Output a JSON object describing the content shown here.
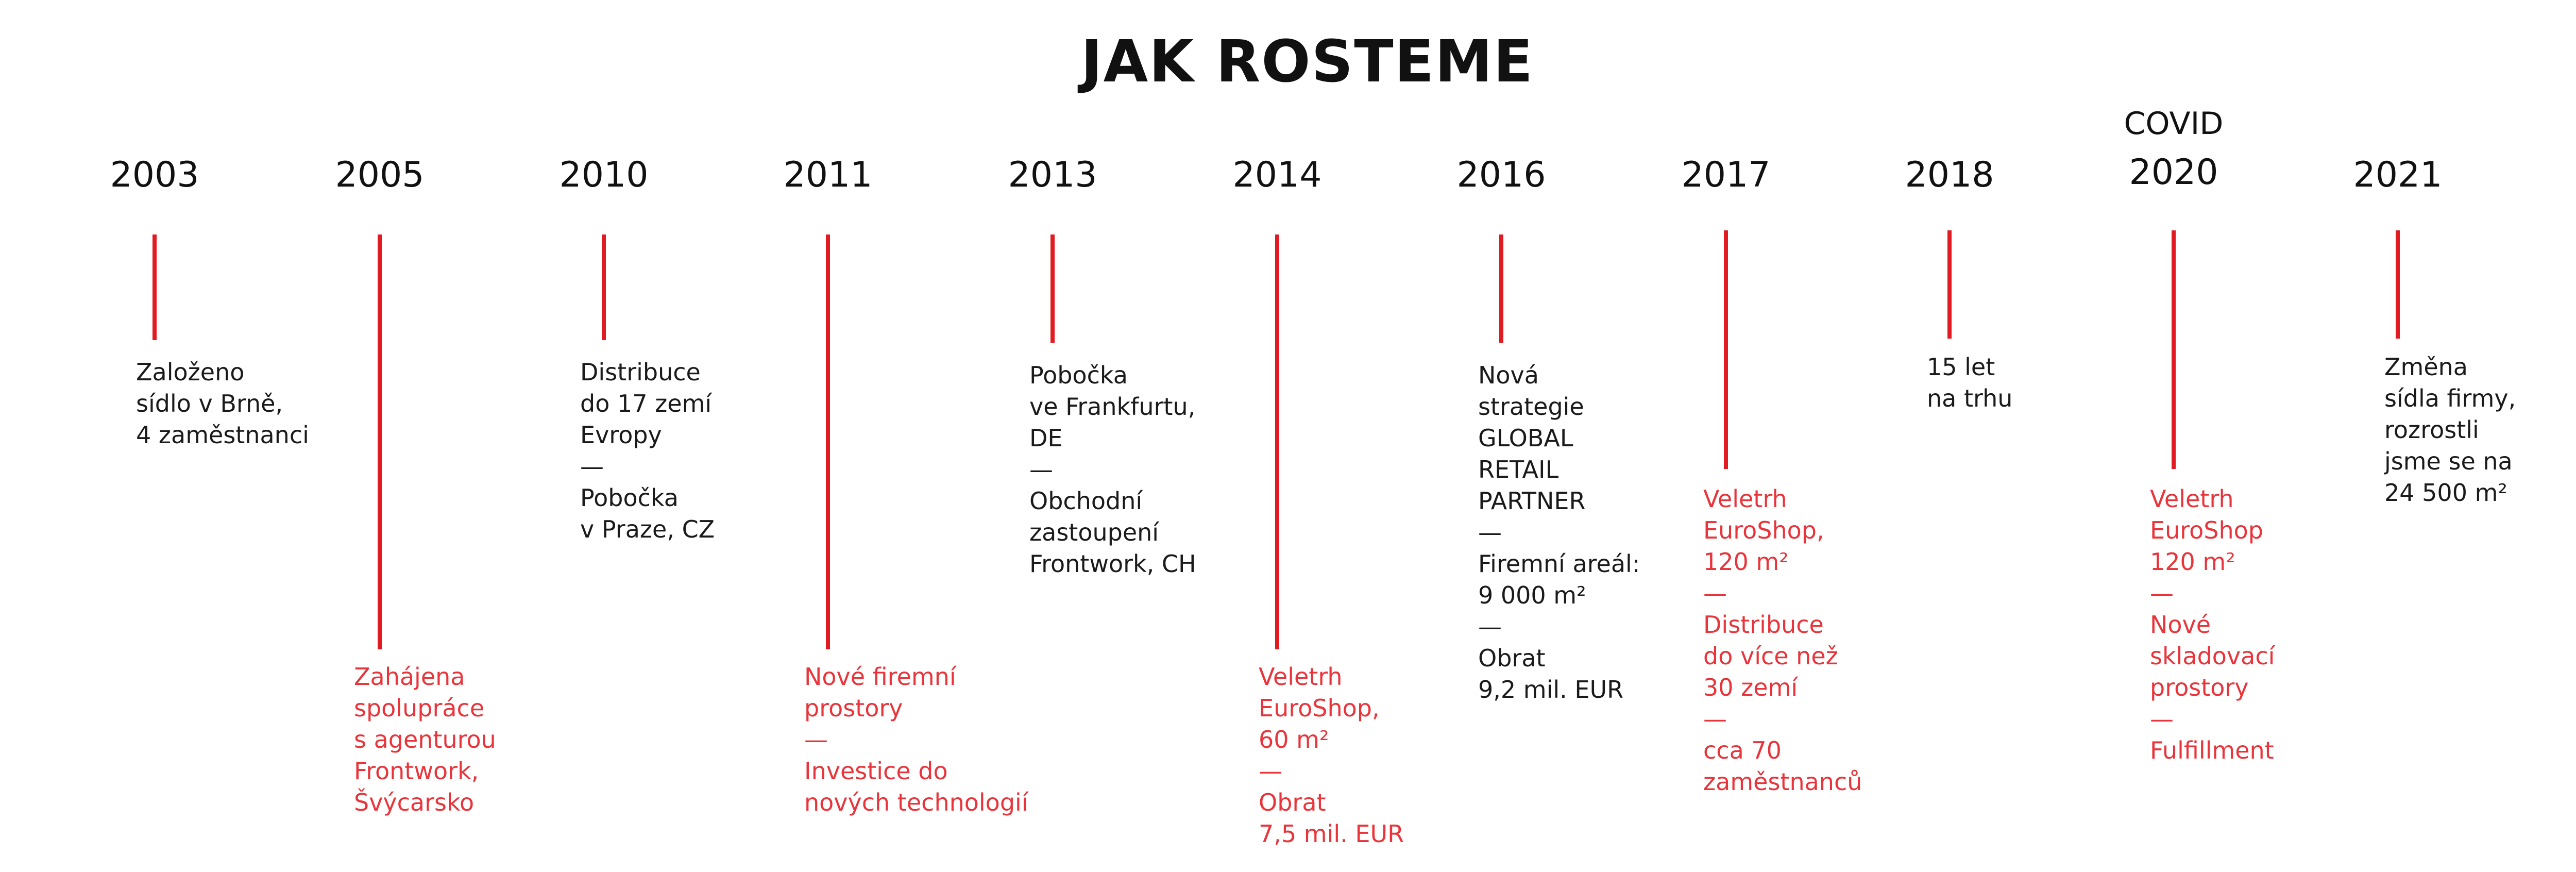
{
  "title": "JAK ROSTEME",
  "accent_color": "#e11b22",
  "covid_label": "COVID",
  "milestones": [
    {
      "year": "2003",
      "text": "Založeno\nsídlo v Brně,\n4 zaměstnanci",
      "text_color": "black"
    },
    {
      "year": "2005",
      "text": "Zahájena\nspolupráce\ns agenturou\nFrontwork,\nŠvýcarsko",
      "text_color": "red"
    },
    {
      "year": "2010",
      "text": "Distribuce\ndo 17 zemí\nEvropy\n—\nPobočka\nv Praze, CZ",
      "text_color": "black"
    },
    {
      "year": "2011",
      "text": "Nové firemní\nprostory\n—\nInvestice do\nnových technologií",
      "text_color": "red"
    },
    {
      "year": "2013",
      "text": "Pobočka\nve Frankfurtu,\nDE\n—\nObchodní\nzastoupení\nFrontwork, CH",
      "text_color": "black"
    },
    {
      "year": "2014",
      "text": "Veletrh\nEuroShop,\n60 m²\n—\nObrat\n7,5 mil. EUR",
      "text_color": "red"
    },
    {
      "year": "2016",
      "text": "Nová\nstrategie\nGLOBAL\nRETAIL\nPARTNER\n—\nFiremní areál:\n9 000 m²\n—\nObrat\n9,2 mil. EUR",
      "text_color": "black"
    },
    {
      "year": "2017",
      "text": "Veletrh\nEuroShop,\n120 m²\n—\nDistribuce\ndo více než\n30 zemí\n—\ncca 70\nzaměstnanců",
      "text_color": "red"
    },
    {
      "year": "2018",
      "text": "15 let\nna trhu",
      "text_color": "black"
    },
    {
      "year": "2020",
      "text": "Veletrh\nEuroShop\n120 m²\n—\nNové\nskladovací\nprostory\n—\nFulfillment",
      "text_color": "red"
    },
    {
      "year": "2021",
      "text": "Změna\nsídla firmy,\nrozrostli\njsme se na\n24 500 m²",
      "text_color": "black"
    }
  ]
}
